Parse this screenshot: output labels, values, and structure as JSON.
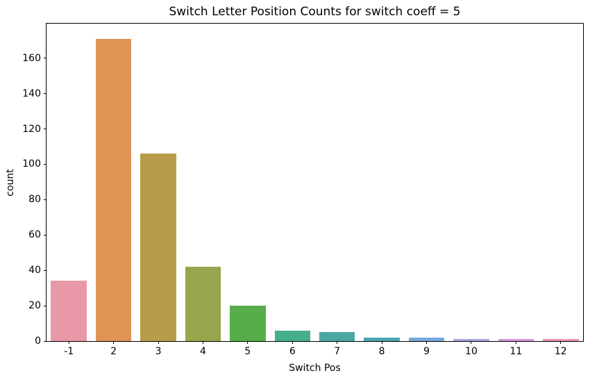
{
  "chart_data": {
    "type": "bar",
    "title": "Switch Letter Position Counts for switch coeff = 5",
    "xlabel": "Switch Pos",
    "ylabel": "count",
    "categories": [
      "-1",
      "2",
      "3",
      "4",
      "5",
      "6",
      "7",
      "8",
      "9",
      "10",
      "11",
      "12"
    ],
    "values": [
      34,
      171,
      106,
      42,
      20,
      6,
      5,
      2,
      2,
      1,
      1,
      1
    ],
    "bar_colors": [
      "#e898a6",
      "#df9355",
      "#b79d4a",
      "#98a54c",
      "#56ad4a",
      "#46ad8d",
      "#49a8a2",
      "#4ba6b4",
      "#76aadd",
      "#a6a5e3",
      "#d794dc",
      "#e592b6"
    ],
    "yticks": [
      0,
      20,
      40,
      60,
      80,
      100,
      120,
      140,
      160
    ],
    "ylim": [
      0,
      179.55
    ],
    "bar_rel_width": 0.8,
    "grid": false,
    "legend_position": "none",
    "axes_edge_color": "#000000",
    "background_color": "#ffffff"
  }
}
